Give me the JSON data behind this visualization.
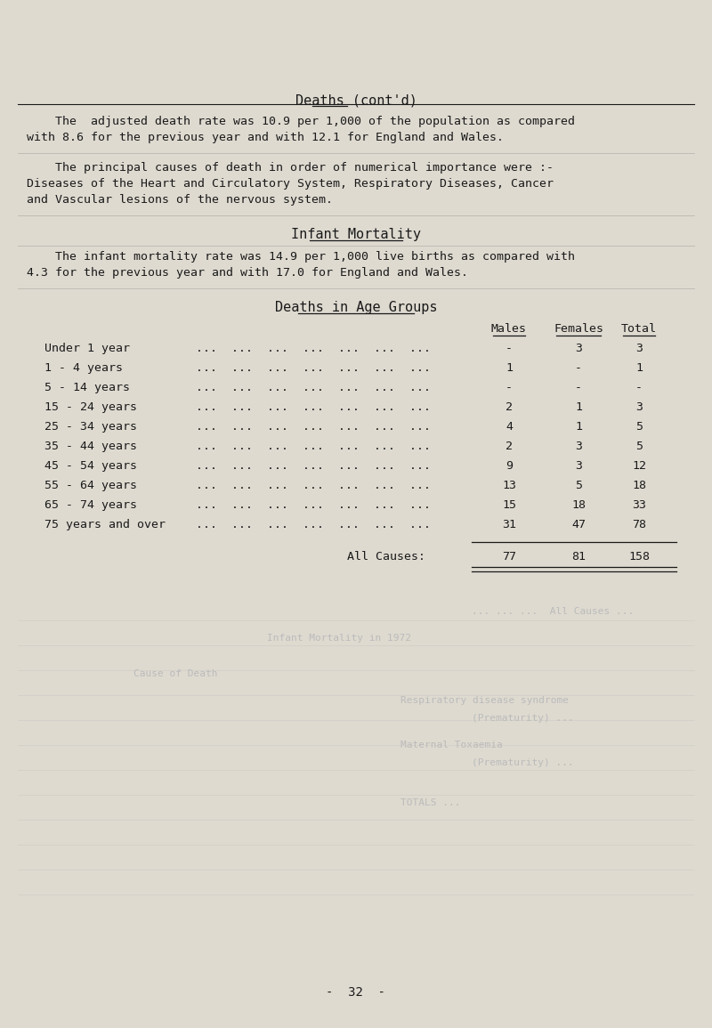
{
  "bg_color": "#dedad0",
  "text_color": "#1a1a1a",
  "ghost_color": "#aaaaaa",
  "title_text": "Deaths (cont’d)",
  "title_underline_word": "Deaths",
  "para1_line1": "    The  adjusted death rate was 10.9 per 1,000 of the population as compared",
  "para1_line2": "with 8.6 for the previous year and with 12.1 for England and Wales.",
  "para2_line1": "    The principal causes of death in order of numerical importance were :-",
  "para2_line2": "Diseases of the Heart and Circulatory System, Respiratory Diseases, Cancer",
  "para2_line3": "and Vascular lesions of the nervous system.",
  "subtitle": "Infant Mortality",
  "para3_line1": "    The infant mortality rate was 14.9 per 1,000 live births as compared with",
  "para3_line2": "4.3 for the previous year and with 17.0 for England and Wales.",
  "table_title": "Deaths in Age Groups",
  "col_males": "Males",
  "col_females": "Females",
  "col_total": "Total",
  "age_groups": [
    "Under 1 year",
    "1 - 4 years",
    "5 - 14 years",
    "15 - 24 years",
    "25 - 34 years",
    "35 - 44 years",
    "45 - 54 years",
    "55 - 64 years",
    "65 - 74 years",
    "75 years and over"
  ],
  "males": [
    "-",
    "1",
    "-",
    "2",
    "4",
    "2",
    "9",
    "13",
    "15",
    "31"
  ],
  "females": [
    "3",
    "-",
    "-",
    "1",
    "1",
    "3",
    "3",
    "5",
    "18",
    "47"
  ],
  "totals": [
    "3",
    "1",
    "-",
    "3",
    "5",
    "5",
    "12",
    "18",
    "33",
    "78"
  ],
  "all_causes_label": "All Causes:",
  "all_causes_males": "77",
  "all_causes_females": "81",
  "all_causes_total": "158",
  "page_number": "-  32  -",
  "dots": "...  ...  ...  ...  ...  ...  ..."
}
